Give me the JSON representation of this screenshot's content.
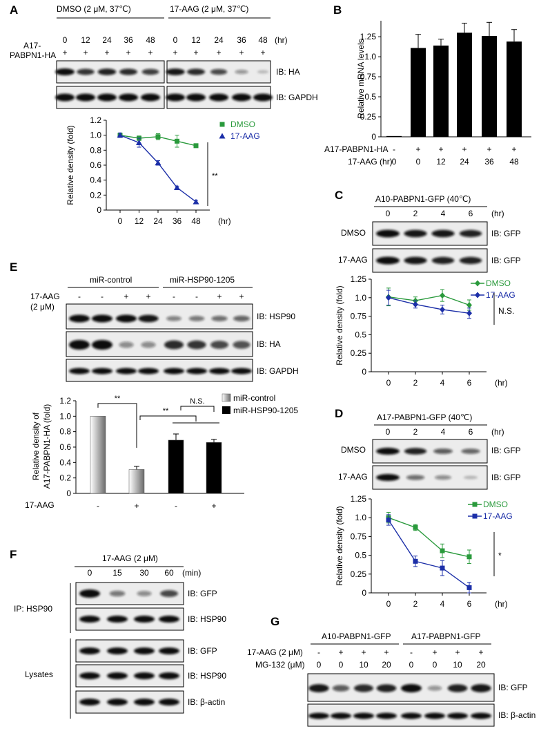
{
  "panels": {
    "A": "A",
    "B": "B",
    "C": "C",
    "D": "D",
    "E": "E",
    "F": "F",
    "G": "G"
  },
  "panel_a": {
    "group_dmso": "DMSO (2 μM, 37℃)",
    "group_aag": "17-AAG (2 μM, 37℃)",
    "times": [
      "0",
      "12",
      "24",
      "36",
      "48"
    ],
    "unit": "(hr)",
    "row_label_1": "A17-",
    "row_label_2": "PABPN1-HA",
    "plus": "+",
    "ib_ha": "IB: HA",
    "ib_gapdh": "IB: GAPDH",
    "band_dmso": [
      1.0,
      0.8,
      0.9,
      0.85,
      0.75
    ],
    "band_aag": [
      0.95,
      0.85,
      0.7,
      0.3,
      0.08
    ],
    "sig": "**"
  },
  "panel_b": {
    "row1_label": "A17-PABPN1-HA",
    "row2_label": "17-AAG (hr)",
    "row1_values": [
      "-",
      "+",
      "+",
      "+",
      "+",
      "+"
    ],
    "row2_values": [
      "0",
      "0",
      "12",
      "24",
      "36",
      "48"
    ],
    "sig": ""
  },
  "panel_c": {
    "title": "A10-PABPN1-GFP (40℃)",
    "times": [
      "0",
      "2",
      "4",
      "6"
    ],
    "unit": "(hr)",
    "row_dmso": "DMSO",
    "row_aag": "17-AAG",
    "ib": "IB: GFP",
    "band_dmso": [
      1.0,
      0.95,
      0.95,
      0.9
    ],
    "band_aag": [
      1.0,
      0.95,
      0.9,
      0.9
    ],
    "sig": "N.S."
  },
  "panel_d": {
    "title": "A17-PABPN1-GFP (40℃)",
    "times": [
      "0",
      "2",
      "4",
      "6"
    ],
    "unit": "(hr)",
    "row_dmso": "DMSO",
    "row_aag": "17-AAG",
    "ib": "IB: GFP",
    "band_dmso": [
      1.0,
      0.9,
      0.6,
      0.55
    ],
    "band_aag": [
      1.0,
      0.5,
      0.35,
      0.1
    ],
    "sig": "*"
  },
  "panel_e": {
    "group_ctrl": "miR-control",
    "group_hsp": "miR-HSP90-1205",
    "aag_label_1": "17-AAG",
    "aag_label_2": "(2 μM)",
    "treat": [
      "-",
      "-",
      "+",
      "+",
      "-",
      "-",
      "+",
      "+"
    ],
    "ib_hsp90": "IB: HSP90",
    "ib_ha": "IB: HA",
    "ib_gapdh": "IB: GAPDH",
    "band_hsp90": [
      1.0,
      1.0,
      1.0,
      0.95,
      0.4,
      0.45,
      0.5,
      0.55
    ],
    "band_ha": [
      1.0,
      1.0,
      0.35,
      0.35,
      0.85,
      0.8,
      0.7,
      0.65
    ],
    "band_gapdh": [
      1.0,
      1.0,
      1.0,
      1.0,
      1.0,
      1.0,
      1.0,
      1.0
    ],
    "sig_a": "**",
    "sig_b": "**",
    "sig_c": "N.S.",
    "x_row_label": "17-AAG",
    "x_values": [
      "-",
      "+",
      "-",
      "+"
    ]
  },
  "panel_f": {
    "title": "17-AAG (2 μM)",
    "times": [
      "0",
      "15",
      "30",
      "60"
    ],
    "unit": "(min)",
    "ip_label": "IP: HSP90",
    "lys_label": "Lysates",
    "blots": [
      "IB: GFP",
      "IB: HSP90",
      "IB: GFP",
      "IB: HSP90",
      "IB: β-actin"
    ],
    "band_ip_gfp": [
      1.0,
      0.45,
      0.35,
      0.7
    ],
    "band_default": [
      1.0,
      1.0,
      1.0,
      1.0
    ]
  },
  "panel_g": {
    "group_a10": "A10-PABPN1-GFP",
    "group_a17": "A17-PABPN1-GFP",
    "row1_label": "17-AAG (2 μM)",
    "row2_label": "MG-132 (μM)",
    "row1_values": [
      "-",
      "+",
      "+",
      "+",
      "-",
      "+",
      "+",
      "+"
    ],
    "row2_values": [
      "0",
      "0",
      "10",
      "20",
      "0",
      "0",
      "10",
      "20"
    ],
    "ib_gfp": "IB: GFP",
    "ib_actin": "IB: β-actin",
    "band_gfp": [
      0.95,
      0.6,
      0.85,
      0.9,
      1.0,
      0.3,
      0.9,
      0.95
    ],
    "band_actin": [
      1.0,
      1.0,
      1.0,
      1.0,
      1.0,
      1.0,
      1.0,
      1.0
    ]
  },
  "chart_data": [
    {
      "id": "A",
      "type": "line",
      "xlabel": "",
      "ylabel": "Relative density (fold)",
      "x": [
        0,
        12,
        24,
        36,
        48
      ],
      "x_unit": "(hr)",
      "ylim": [
        0,
        1.2
      ],
      "yticks": [
        "0",
        "0.2",
        "0.4",
        "0.6",
        "0.8",
        "1.0",
        "1.2"
      ],
      "series": [
        {
          "name": "DMSO",
          "color": "#2a9a3c",
          "marker": "square",
          "values": [
            1.0,
            0.96,
            0.98,
            0.92,
            0.86
          ],
          "err": [
            0.03,
            0.03,
            0.04,
            0.08,
            0.02
          ]
        },
        {
          "name": "17-AAG",
          "color": "#1c2fa8",
          "marker": "triangle",
          "values": [
            1.0,
            0.9,
            0.63,
            0.3,
            0.11
          ],
          "err": [
            0.03,
            0.06,
            0.03,
            0.02,
            0.02
          ]
        }
      ]
    },
    {
      "id": "B",
      "type": "bar",
      "ylabel": "Relative mRNA levels",
      "ylim": [
        0,
        1.45
      ],
      "yticks": [
        "0",
        "0.25",
        "0.5",
        "0.75",
        "1.0",
        "1.25"
      ],
      "values": [
        0.01,
        1.11,
        1.14,
        1.3,
        1.26,
        1.19
      ],
      "err": [
        0,
        0.17,
        0.08,
        0.12,
        0.17,
        0.15
      ]
    },
    {
      "id": "C",
      "type": "line",
      "ylabel": "Relative density (fold)",
      "x": [
        0,
        2,
        4,
        6
      ],
      "x_unit": "(hr)",
      "ylim": [
        0,
        1.25
      ],
      "yticks": [
        "0",
        "0.25",
        "0.5",
        "0.75",
        "1.0",
        "1.25"
      ],
      "series": [
        {
          "name": "DMSO",
          "color": "#2a9a3c",
          "marker": "diamond",
          "values": [
            1.01,
            0.96,
            1.03,
            0.9
          ],
          "err": [
            0.12,
            0.05,
            0.08,
            0.07
          ]
        },
        {
          "name": "17-AAG",
          "color": "#1c2fa8",
          "marker": "diamond",
          "values": [
            1.0,
            0.91,
            0.84,
            0.79
          ],
          "err": [
            0.1,
            0.05,
            0.06,
            0.07
          ]
        }
      ]
    },
    {
      "id": "D",
      "type": "line",
      "ylabel": "Relative density (fold)",
      "x": [
        0,
        2,
        4,
        6
      ],
      "x_unit": "(hr)",
      "ylim": [
        0,
        1.25
      ],
      "yticks": [
        "0",
        "0.25",
        "0.5",
        "0.75",
        "1.0",
        "1.25"
      ],
      "series": [
        {
          "name": "DMSO",
          "color": "#2a9a3c",
          "marker": "square",
          "values": [
            1.0,
            0.87,
            0.56,
            0.48
          ],
          "err": [
            0.07,
            0.04,
            0.09,
            0.09
          ]
        },
        {
          "name": "17-AAG",
          "color": "#1c2fa8",
          "marker": "square",
          "values": [
            0.97,
            0.42,
            0.33,
            0.07
          ],
          "err": [
            0.07,
            0.07,
            0.1,
            0.07
          ]
        }
      ]
    },
    {
      "id": "E",
      "type": "bar",
      "ylabel": "Relative density of A17-PABPN1-HA (fold)",
      "ylabel_lines": [
        "Relative density of",
        "A17-PABPN1-HA (fold)"
      ],
      "ylim": [
        0,
        1.2
      ],
      "yticks": [
        "0",
        "0.2",
        "0.4",
        "0.6",
        "0.8",
        "1.0",
        "1.2"
      ],
      "values": [
        1.0,
        0.31,
        0.69,
        0.66
      ],
      "err": [
        0,
        0.04,
        0.08,
        0.04
      ],
      "legend": [
        "miR-control",
        "miR-HSP90-1205"
      ]
    }
  ]
}
